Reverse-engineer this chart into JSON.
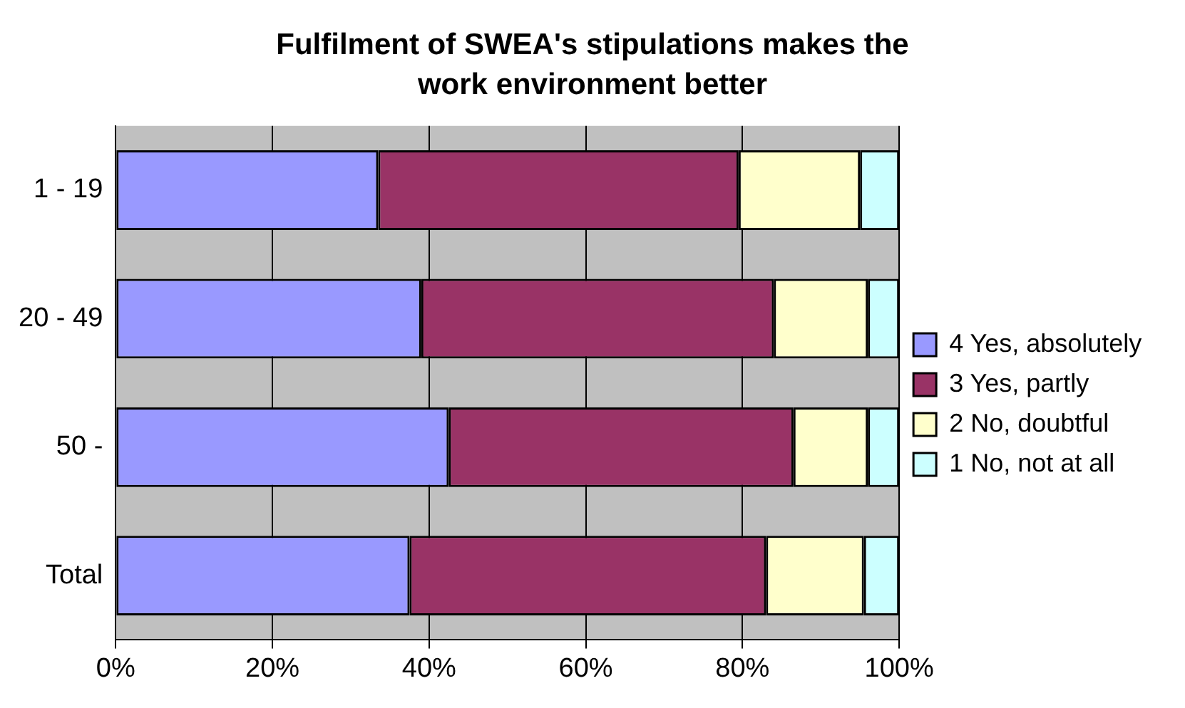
{
  "chart_data": {
    "type": "bar",
    "orientation": "horizontal",
    "stacked": true,
    "title": "Fulfilment of SWEA's stipulations makes the work environment better",
    "categories": [
      "1 - 19",
      "20 - 49",
      "50 -",
      "Total"
    ],
    "series": [
      {
        "name": "4 Yes, absolutely",
        "color": "#9999ff",
        "values": [
          33.5,
          39,
          42.5,
          37.5
        ]
      },
      {
        "name": "3 Yes, partly",
        "color": "#993366",
        "values": [
          46,
          45,
          44,
          45.5
        ]
      },
      {
        "name": "2 No, doubtful",
        "color": "#ffffcc",
        "values": [
          15.5,
          12,
          9.5,
          12.5
        ]
      },
      {
        "name": "1 No, not at all",
        "color": "#ccffff",
        "values": [
          5,
          4,
          4,
          4.5
        ]
      }
    ],
    "xlim": [
      0,
      100
    ],
    "xticks": [
      {
        "value": 0,
        "label": "0%"
      },
      {
        "value": 20,
        "label": "20%"
      },
      {
        "value": 40,
        "label": "40%"
      },
      {
        "value": 60,
        "label": "60%"
      },
      {
        "value": 80,
        "label": "80%"
      },
      {
        "value": 100,
        "label": "100%"
      }
    ],
    "grid": "x",
    "legend": "right"
  }
}
